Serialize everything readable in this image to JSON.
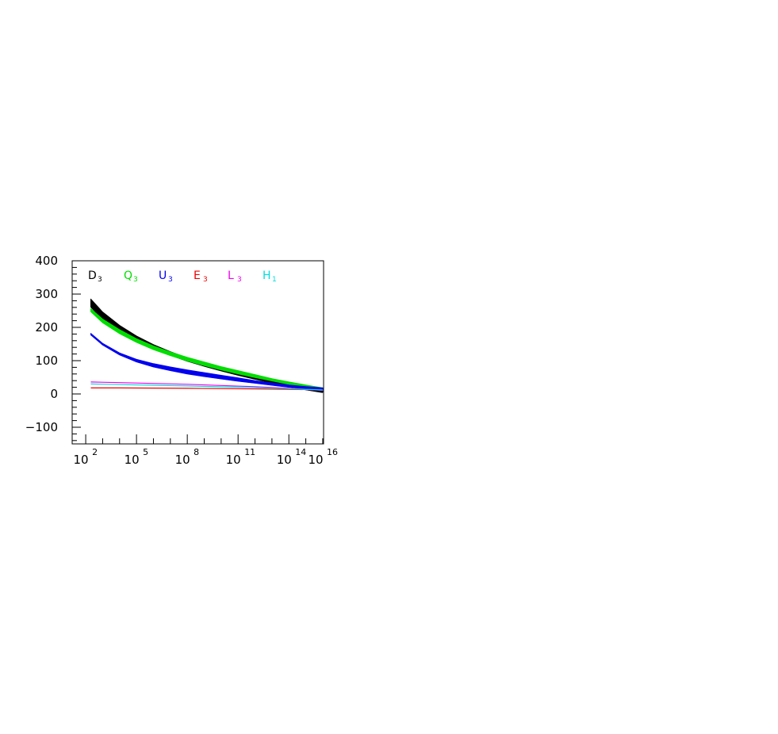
{
  "chart_data": {
    "type": "line",
    "title": "",
    "xlabel": "",
    "ylabel": "",
    "xscale": "log",
    "xlim": [
      10,
      1e+16
    ],
    "ylim": [
      -150,
      400
    ],
    "grid": false,
    "legend_position": "top-left",
    "x_tick_labels": [
      {
        "base": "10",
        "exp": "2"
      },
      {
        "base": "10",
        "exp": "5"
      },
      {
        "base": "10",
        "exp": "8"
      },
      {
        "base": "10",
        "exp": "11"
      },
      {
        "base": "10",
        "exp": "14"
      },
      {
        "base": "10",
        "exp": "16"
      }
    ],
    "y_tick_labels": [
      "400",
      "300",
      "200",
      "100",
      "0",
      "−100"
    ],
    "y_tick_values": [
      400,
      300,
      200,
      100,
      0,
      -100
    ],
    "x_tick_values": [
      100.0,
      100000.0,
      100000000.0,
      100000000000.0,
      100000000000000.0,
      1e+16
    ],
    "series": [
      {
        "name": "D",
        "sub": "3",
        "color": "#000000",
        "band": true,
        "x": [
          200,
          1000.0,
          10000.0,
          100000.0,
          1000000.0,
          10000000.0,
          100000000.0,
          1000000000.0,
          10000000000.0,
          100000000000.0,
          1000000000000.0,
          10000000000000.0,
          100000000000000.0,
          1000000000000000.0,
          1e+16
        ],
        "y_low": [
          262,
          225,
          190,
          160,
          136,
          117,
          99,
          84,
          70,
          57,
          45,
          34,
          23,
          13,
          5
        ],
        "y_high": [
          285,
          246,
          206,
          174,
          148,
          127,
          108,
          92,
          77,
          63,
          50,
          38,
          27,
          17,
          9
        ]
      },
      {
        "name": "Q",
        "sub": "3",
        "color": "#00dd00",
        "band": true,
        "x": [
          200,
          1000.0,
          10000.0,
          100000.0,
          1000000.0,
          10000000.0,
          100000000.0,
          1000000000.0,
          10000000000.0,
          100000000000.0,
          1000000000000.0,
          10000000000000.0,
          100000000000000.0,
          1000000000000000.0,
          1e+16
        ],
        "y_low": [
          248,
          215,
          182,
          156,
          134,
          116,
          100,
          86,
          73,
          61,
          50,
          40,
          30,
          22,
          14
        ],
        "y_high": [
          256,
          225,
          193,
          166,
          144,
          126,
          110,
          96,
          82,
          70,
          58,
          46,
          36,
          27,
          18
        ]
      },
      {
        "name": "U",
        "sub": "3",
        "color": "#0000ee",
        "band": true,
        "x": [
          200,
          1000.0,
          10000.0,
          100000.0,
          1000000.0,
          10000000.0,
          100000000.0,
          1000000000.0,
          10000000000.0,
          100000000000.0,
          1000000000000.0,
          10000000000000.0,
          100000000000000.0,
          1000000000000000.0,
          1e+16
        ],
        "y_low": [
          178,
          148,
          118,
          97,
          82,
          71,
          61,
          53,
          46,
          39,
          33,
          27,
          21,
          16,
          11
        ],
        "y_high": [
          182,
          152,
          123,
          104,
          91,
          81,
          72,
          64,
          56,
          48,
          40,
          33,
          27,
          22,
          18
        ]
      },
      {
        "name": "E",
        "sub": "3",
        "color": "#ee0000",
        "band": false,
        "x": [
          200,
          10000.0,
          100000000.0,
          1000000000000.0,
          100000000000000.0,
          1e+16
        ],
        "y": [
          18,
          18,
          17,
          15,
          14,
          12
        ]
      },
      {
        "name": "L",
        "sub": "3",
        "color": "#ee00ee",
        "band": false,
        "x": [
          200,
          10000.0,
          100000000.0,
          1000000000000.0,
          100000000000000.0,
          1e+16
        ],
        "y": [
          36,
          34,
          29,
          22,
          17,
          11
        ]
      },
      {
        "name": "H",
        "sub": "1",
        "color": "#00dddd",
        "band": false,
        "x": [
          200,
          10000.0,
          100000000.0,
          1000000000000.0,
          100000000000000.0,
          1e+16
        ],
        "y": [
          30,
          28,
          24,
          19,
          16,
          12
        ]
      }
    ]
  }
}
